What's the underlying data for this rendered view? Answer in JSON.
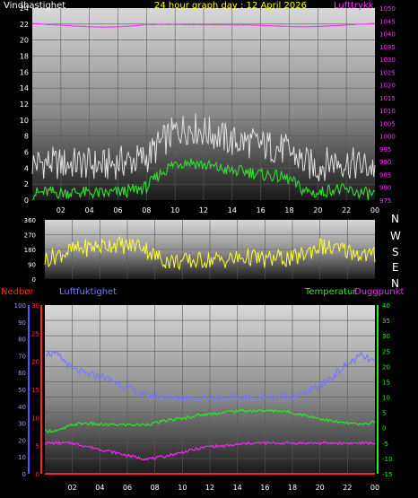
{
  "header": {
    "top_left": "Vindhastighet",
    "title": "24 hour graph day : 12 April 2026",
    "top_right": "Lufttrykk"
  },
  "compass_letters": [
    "N",
    "W",
    "S",
    "E",
    "N"
  ],
  "bottom_labels": {
    "nedbor": "Nedbør",
    "luftfuktighet": "Luftfuktighet",
    "temperatur": "Temperatur",
    "duggpunkt": "Duggpunkt"
  },
  "colors": {
    "wind_gust": "#e0e0e0",
    "wind_avg": "#33dd33",
    "pressure": "#ff33ff",
    "direction": "#ffff33",
    "humidity": "#7777ff",
    "temperature": "#22ee22",
    "dewpoint": "#ff22ff",
    "rain": "#ff2222",
    "title": "#ffff00"
  },
  "chart_data": [
    {
      "type": "line",
      "title": "24 hour graph day : 12 April 2026",
      "x_tick_labels": [
        "02",
        "04",
        "06",
        "08",
        "10",
        "12",
        "14",
        "16",
        "18",
        "20",
        "22",
        "00"
      ],
      "left_axis": {
        "label": "Vindhastighet",
        "range": [
          0,
          24
        ],
        "ticks": [
          0,
          2,
          4,
          6,
          8,
          10,
          12,
          14,
          16,
          18,
          20,
          22,
          24
        ]
      },
      "right_axis": {
        "label": "Lufttrykk",
        "range": [
          975,
          1050
        ],
        "ticks": [
          975,
          980,
          985,
          990,
          995,
          1000,
          1005,
          1010,
          1015,
          1020,
          1025,
          1030,
          1035,
          1040,
          1045,
          1050
        ]
      },
      "x": [
        0,
        1,
        2,
        3,
        4,
        5,
        6,
        7,
        8,
        9,
        10,
        11,
        12,
        13,
        14,
        15,
        16,
        17,
        18,
        19,
        20,
        21,
        22,
        23,
        24
      ],
      "series": [
        {
          "name": "Vindhastighet (gust)",
          "axis": "left",
          "values": [
            2.5,
            2.6,
            2.4,
            2.5,
            2.4,
            2.2,
            2.6,
            2.8,
            3.2,
            5,
            6.5,
            7,
            6.5,
            6,
            5.2,
            5.2,
            4.8,
            4.5,
            4,
            2.6,
            2,
            2.8,
            2.6,
            2.2,
            2
          ]
        },
        {
          "name": "Vindhastighet (avg)",
          "axis": "left",
          "values": [
            0.8,
            1,
            0.9,
            1,
            0.9,
            0.8,
            1,
            1.2,
            1.6,
            3.4,
            4.6,
            4.8,
            4.4,
            4,
            3.6,
            3.6,
            3.2,
            3,
            2.6,
            1.2,
            0.8,
            1.4,
            1.2,
            0.9,
            0.7
          ]
        },
        {
          "name": "Lufttrykk",
          "axis": "right",
          "values": [
            1044,
            1043.6,
            1043.4,
            1043,
            1042.7,
            1042.6,
            1042.7,
            1043,
            1043.5,
            1043.6,
            1043.6,
            1043.5,
            1043.5,
            1043.5,
            1043.4,
            1043.4,
            1043.2,
            1043,
            1042.8,
            1042.7,
            1042.8,
            1043.1,
            1043.4,
            1043.7,
            1044
          ]
        }
      ]
    },
    {
      "type": "line",
      "left_axis": {
        "range": [
          0,
          360
        ],
        "ticks": [
          0,
          90,
          180,
          270,
          360
        ]
      },
      "right_axis_labels": [
        "N",
        "W",
        "S",
        "E",
        "N"
      ],
      "x": [
        0,
        1,
        2,
        3,
        4,
        5,
        6,
        7,
        8,
        9,
        10,
        11,
        12,
        13,
        14,
        15,
        16,
        17,
        18,
        19,
        20,
        21,
        22,
        23,
        24
      ],
      "series": [
        {
          "name": "Wind direction",
          "values": [
            120,
            150,
            175,
            190,
            200,
            215,
            200,
            210,
            140,
            110,
            105,
            110,
            120,
            115,
            125,
            135,
            115,
            130,
            120,
            160,
            200,
            180,
            175,
            150,
            140
          ]
        }
      ]
    },
    {
      "type": "line",
      "x_tick_labels": [
        "02",
        "04",
        "06",
        "08",
        "10",
        "12",
        "14",
        "16",
        "18",
        "20",
        "22",
        "00"
      ],
      "axes": {
        "humidity": {
          "label": "Luftfuktighet",
          "range": [
            0,
            100
          ],
          "ticks": [
            0,
            10,
            20,
            30,
            40,
            50,
            60,
            70,
            80,
            90,
            100
          ]
        },
        "rain": {
          "label": "Nedbør",
          "range": [
            0,
            30
          ],
          "ticks": [
            0,
            5,
            10,
            15,
            20,
            25,
            30
          ]
        },
        "temperature": {
          "label": "Temperatur",
          "range": [
            -15,
            40
          ],
          "ticks": [
            -15,
            -10,
            -5,
            0,
            5,
            10,
            15,
            20,
            25,
            30,
            35,
            40
          ]
        }
      },
      "x": [
        0,
        1,
        2,
        3,
        4,
        5,
        6,
        7,
        8,
        9,
        10,
        11,
        12,
        13,
        14,
        15,
        16,
        17,
        18,
        19,
        20,
        21,
        22,
        23,
        24
      ],
      "series": [
        {
          "name": "Luftfuktighet",
          "axis": "humidity",
          "values": [
            72,
            70,
            62,
            59,
            58,
            55,
            51,
            47,
            46,
            45,
            45,
            45,
            45,
            45,
            45,
            45,
            45,
            46,
            46,
            48,
            52,
            58,
            65,
            70,
            66
          ]
        },
        {
          "name": "Temperatur",
          "axis": "temperature",
          "values": [
            -1,
            -1,
            1,
            1.5,
            1,
            1,
            1,
            1,
            1.5,
            2.5,
            3,
            4,
            4.5,
            5,
            5.5,
            5.5,
            5.5,
            5.5,
            5,
            4,
            3,
            2,
            1.5,
            1,
            2
          ]
        },
        {
          "name": "Duggpunkt",
          "axis": "temperature",
          "values": [
            -5,
            -5,
            -5,
            -6,
            -7,
            -8,
            -9,
            -10,
            -10,
            -9,
            -8,
            -7,
            -6,
            -6,
            -5.5,
            -5,
            -5,
            -5,
            -5,
            -5,
            -5,
            -5,
            -5,
            -5,
            -5
          ]
        },
        {
          "name": "Nedbør",
          "axis": "rain",
          "values": [
            0,
            0,
            0,
            0,
            0,
            0,
            0,
            0,
            0,
            0,
            0,
            0,
            0,
            0,
            0,
            0,
            0,
            0,
            0,
            0,
            0,
            0,
            0,
            0,
            0
          ]
        }
      ]
    }
  ]
}
